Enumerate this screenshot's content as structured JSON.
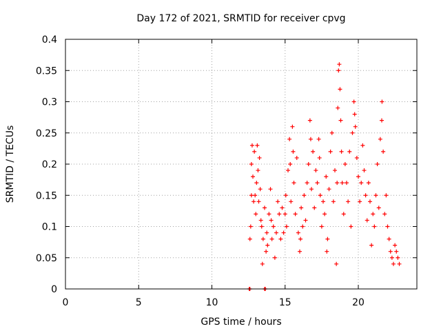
{
  "chart_data": {
    "type": "scatter",
    "title": "Day 172 of 2021, SRMTID for receiver cpvg",
    "xlabel": "GPS time / hours",
    "ylabel": "SRMTID / TECUs",
    "xlim": [
      0,
      24
    ],
    "ylim": [
      0,
      0.4
    ],
    "xticks": [
      0,
      5,
      10,
      15,
      20
    ],
    "xtick_labels": [
      "0",
      "5",
      "10",
      "15",
      "20"
    ],
    "yticks": [
      0,
      0.05,
      0.1,
      0.15,
      0.2,
      0.25,
      0.3,
      0.35,
      0.4
    ],
    "ytick_labels": [
      "0",
      "0.05",
      "0.1",
      "0.15",
      "0.2",
      "0.25",
      "0.3",
      "0.35",
      "0.4"
    ],
    "grid": true,
    "marker": "+",
    "color": "#ff0000",
    "series": [
      {
        "name": "SRMTID",
        "points": [
          [
            12.55,
            0.0
          ],
          [
            12.6,
            0.0
          ],
          [
            13.6,
            0.0
          ],
          [
            13.65,
            0.0
          ],
          [
            12.6,
            0.08
          ],
          [
            12.65,
            0.1
          ],
          [
            12.7,
            0.15
          ],
          [
            12.7,
            0.2
          ],
          [
            12.75,
            0.23
          ],
          [
            12.8,
            0.18
          ],
          [
            12.85,
            0.14
          ],
          [
            12.9,
            0.22
          ],
          [
            12.95,
            0.15
          ],
          [
            13.0,
            0.12
          ],
          [
            13.05,
            0.17
          ],
          [
            13.1,
            0.23
          ],
          [
            13.15,
            0.19
          ],
          [
            13.2,
            0.14
          ],
          [
            13.25,
            0.21
          ],
          [
            13.3,
            0.16
          ],
          [
            13.35,
            0.11
          ],
          [
            13.4,
            0.1
          ],
          [
            13.45,
            0.04
          ],
          [
            13.5,
            0.08
          ],
          [
            13.6,
            0.13
          ],
          [
            13.7,
            0.06
          ],
          [
            13.75,
            0.09
          ],
          [
            13.8,
            0.07
          ],
          [
            13.9,
            0.12
          ],
          [
            14.0,
            0.16
          ],
          [
            14.05,
            0.11
          ],
          [
            14.1,
            0.08
          ],
          [
            14.2,
            0.1
          ],
          [
            14.3,
            0.05
          ],
          [
            14.4,
            0.09
          ],
          [
            14.5,
            0.14
          ],
          [
            14.6,
            0.12
          ],
          [
            14.7,
            0.08
          ],
          [
            14.8,
            0.13
          ],
          [
            14.9,
            0.09
          ],
          [
            15.0,
            0.12
          ],
          [
            15.05,
            0.15
          ],
          [
            15.1,
            0.1
          ],
          [
            15.2,
            0.19
          ],
          [
            15.3,
            0.24
          ],
          [
            15.35,
            0.2
          ],
          [
            15.4,
            0.14
          ],
          [
            15.5,
            0.26
          ],
          [
            15.55,
            0.22
          ],
          [
            15.6,
            0.17
          ],
          [
            15.7,
            0.12
          ],
          [
            15.8,
            0.21
          ],
          [
            15.9,
            0.09
          ],
          [
            16.0,
            0.06
          ],
          [
            16.05,
            0.08
          ],
          [
            16.1,
            0.13
          ],
          [
            16.2,
            0.1
          ],
          [
            16.3,
            0.15
          ],
          [
            16.4,
            0.11
          ],
          [
            16.5,
            0.17
          ],
          [
            16.6,
            0.2
          ],
          [
            16.7,
            0.27
          ],
          [
            16.75,
            0.24
          ],
          [
            16.8,
            0.16
          ],
          [
            16.9,
            0.22
          ],
          [
            17.0,
            0.13
          ],
          [
            17.1,
            0.19
          ],
          [
            17.2,
            0.17
          ],
          [
            17.3,
            0.24
          ],
          [
            17.35,
            0.21
          ],
          [
            17.4,
            0.15
          ],
          [
            17.5,
            0.1
          ],
          [
            17.6,
            0.14
          ],
          [
            17.7,
            0.12
          ],
          [
            17.8,
            0.18
          ],
          [
            17.85,
            0.06
          ],
          [
            17.9,
            0.08
          ],
          [
            18.0,
            0.16
          ],
          [
            18.1,
            0.22
          ],
          [
            18.2,
            0.25
          ],
          [
            18.3,
            0.14
          ],
          [
            18.4,
            0.19
          ],
          [
            18.5,
            0.04
          ],
          [
            18.55,
            0.17
          ],
          [
            18.6,
            0.29
          ],
          [
            18.65,
            0.35
          ],
          [
            18.7,
            0.36
          ],
          [
            18.75,
            0.32
          ],
          [
            18.8,
            0.27
          ],
          [
            18.85,
            0.22
          ],
          [
            18.9,
            0.17
          ],
          [
            19.0,
            0.12
          ],
          [
            19.1,
            0.2
          ],
          [
            19.2,
            0.17
          ],
          [
            19.3,
            0.14
          ],
          [
            19.4,
            0.22
          ],
          [
            19.5,
            0.1
          ],
          [
            19.6,
            0.25
          ],
          [
            19.7,
            0.3
          ],
          [
            19.75,
            0.28
          ],
          [
            19.8,
            0.26
          ],
          [
            19.9,
            0.21
          ],
          [
            20.0,
            0.18
          ],
          [
            20.1,
            0.14
          ],
          [
            20.2,
            0.17
          ],
          [
            20.3,
            0.23
          ],
          [
            20.4,
            0.19
          ],
          [
            20.5,
            0.15
          ],
          [
            20.6,
            0.11
          ],
          [
            20.7,
            0.17
          ],
          [
            20.8,
            0.14
          ],
          [
            20.9,
            0.07
          ],
          [
            21.0,
            0.12
          ],
          [
            21.1,
            0.1
          ],
          [
            21.2,
            0.15
          ],
          [
            21.3,
            0.2
          ],
          [
            21.4,
            0.13
          ],
          [
            21.5,
            0.24
          ],
          [
            21.6,
            0.27
          ],
          [
            21.62,
            0.3
          ],
          [
            21.7,
            0.22
          ],
          [
            21.8,
            0.12
          ],
          [
            21.9,
            0.15
          ],
          [
            22.0,
            0.1
          ],
          [
            22.1,
            0.08
          ],
          [
            22.2,
            0.06
          ],
          [
            22.3,
            0.05
          ],
          [
            22.4,
            0.04
          ],
          [
            22.5,
            0.07
          ],
          [
            22.6,
            0.06
          ],
          [
            22.7,
            0.05
          ],
          [
            22.8,
            0.04
          ]
        ]
      }
    ]
  }
}
